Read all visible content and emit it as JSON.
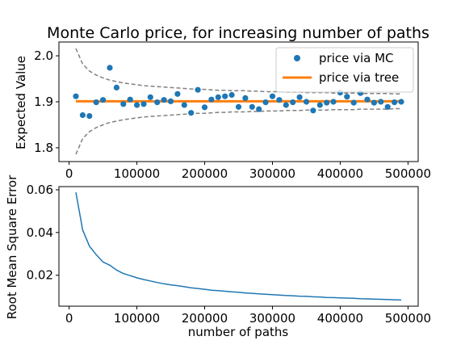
{
  "chart_data": [
    {
      "type": "scatter",
      "title": "Monte Carlo price, for increasing number of paths",
      "xlabel": "",
      "ylabel": "Expected Value",
      "xlim": [
        -15000,
        515000
      ],
      "ylim": [
        1.77,
        2.03
      ],
      "xticks": [
        0,
        100000,
        200000,
        300000,
        400000,
        500000
      ],
      "xtick_labels": [
        "0",
        "100000",
        "200000",
        "300000",
        "400000",
        "500000"
      ],
      "yticks": [
        1.8,
        1.9,
        2.0
      ],
      "ytick_labels": [
        "1.8",
        "1.9",
        "2.0"
      ],
      "grid": false,
      "legend_position": "upper right",
      "legend": [
        "price via MC",
        "price via tree"
      ],
      "x": [
        10000,
        20000,
        30000,
        40000,
        50000,
        60000,
        70000,
        80000,
        90000,
        100000,
        110000,
        120000,
        130000,
        140000,
        150000,
        160000,
        170000,
        180000,
        190000,
        200000,
        210000,
        220000,
        230000,
        240000,
        250000,
        260000,
        270000,
        280000,
        290000,
        300000,
        310000,
        320000,
        330000,
        340000,
        350000,
        360000,
        370000,
        380000,
        390000,
        400000,
        410000,
        420000,
        430000,
        440000,
        450000,
        460000,
        470000,
        480000,
        490000
      ],
      "series": [
        {
          "name": "price via MC",
          "style": "markers",
          "color": "#1f77b4",
          "values": [
            1.912,
            1.871,
            1.869,
            1.899,
            1.904,
            1.974,
            1.931,
            1.895,
            1.905,
            1.893,
            1.895,
            1.91,
            1.899,
            1.904,
            1.901,
            1.917,
            1.893,
            1.876,
            1.926,
            1.888,
            1.905,
            1.91,
            1.912,
            1.915,
            1.889,
            1.908,
            1.889,
            1.884,
            1.899,
            1.912,
            1.904,
            1.893,
            1.899,
            1.91,
            1.9,
            1.881,
            1.893,
            1.898,
            1.9,
            1.92,
            1.911,
            1.898,
            1.919,
            1.905,
            1.898,
            1.9,
            1.889,
            1.899,
            1.9
          ]
        },
        {
          "name": "price via tree",
          "style": "line",
          "color": "#ff7f0e",
          "values": [
            1.901,
            1.901,
            1.901,
            1.901,
            1.901,
            1.901,
            1.901,
            1.901,
            1.901,
            1.901,
            1.901,
            1.901,
            1.901,
            1.901,
            1.901,
            1.901,
            1.901,
            1.901,
            1.901,
            1.901,
            1.901,
            1.901,
            1.901,
            1.901,
            1.901,
            1.901,
            1.901,
            1.901,
            1.901,
            1.901,
            1.901,
            1.901,
            1.901,
            1.901,
            1.901,
            1.901,
            1.901,
            1.901,
            1.901,
            1.901,
            1.901,
            1.901,
            1.901,
            1.901,
            1.901,
            1.901,
            1.901,
            1.901,
            1.901
          ]
        },
        {
          "style": "dashed",
          "color": "#808080",
          "values": [
            2.016,
            1.982,
            1.967,
            1.958,
            1.952,
            1.947,
            1.944,
            1.941,
            1.939,
            1.937,
            1.935,
            1.934,
            1.933,
            1.932,
            1.931,
            1.93,
            1.929,
            1.928,
            1.927,
            1.927,
            1.926,
            1.925,
            1.925,
            1.924,
            1.924,
            1.924,
            1.923,
            1.923,
            1.922,
            1.922,
            1.922,
            1.921,
            1.921,
            1.921,
            1.92,
            1.92,
            1.92,
            1.92,
            1.919,
            1.919,
            1.919,
            1.919,
            1.918,
            1.918,
            1.918,
            1.918,
            1.918,
            1.917,
            1.917
          ]
        },
        {
          "style": "dashed",
          "color": "#808080",
          "values": [
            1.786,
            1.82,
            1.835,
            1.844,
            1.85,
            1.855,
            1.858,
            1.861,
            1.863,
            1.865,
            1.867,
            1.868,
            1.869,
            1.87,
            1.871,
            1.872,
            1.873,
            1.874,
            1.875,
            1.875,
            1.876,
            1.877,
            1.877,
            1.878,
            1.878,
            1.878,
            1.879,
            1.879,
            1.88,
            1.88,
            1.88,
            1.881,
            1.881,
            1.881,
            1.882,
            1.882,
            1.882,
            1.882,
            1.883,
            1.883,
            1.883,
            1.883,
            1.884,
            1.884,
            1.884,
            1.884,
            1.884,
            1.885,
            1.885
          ]
        }
      ]
    },
    {
      "type": "line",
      "title": "",
      "xlabel": "number of paths",
      "ylabel": "Root Mean Square Error",
      "xlim": [
        -15000,
        515000
      ],
      "ylim": [
        0.0055,
        0.0615
      ],
      "xticks": [
        0,
        100000,
        200000,
        300000,
        400000,
        500000
      ],
      "xtick_labels": [
        "0",
        "100000",
        "200000",
        "300000",
        "400000",
        "500000"
      ],
      "yticks": [
        0.02,
        0.04,
        0.06
      ],
      "ytick_labels": [
        "0.02",
        "0.04",
        "0.06"
      ],
      "grid": false,
      "x": [
        10000,
        20000,
        30000,
        40000,
        50000,
        60000,
        70000,
        80000,
        90000,
        100000,
        110000,
        120000,
        130000,
        140000,
        150000,
        160000,
        170000,
        180000,
        190000,
        200000,
        210000,
        220000,
        230000,
        240000,
        250000,
        260000,
        270000,
        280000,
        290000,
        300000,
        310000,
        320000,
        330000,
        340000,
        350000,
        360000,
        370000,
        380000,
        390000,
        400000,
        410000,
        420000,
        430000,
        440000,
        450000,
        460000,
        470000,
        480000,
        490000
      ],
      "series": [
        {
          "color": "#1f77b4",
          "values": [
            0.0588,
            0.0412,
            0.0336,
            0.0296,
            0.0262,
            0.0247,
            0.0224,
            0.0208,
            0.0198,
            0.0188,
            0.018,
            0.0173,
            0.0166,
            0.016,
            0.0155,
            0.0151,
            0.0146,
            0.0141,
            0.0138,
            0.0134,
            0.013,
            0.0128,
            0.0125,
            0.0122,
            0.012,
            0.0117,
            0.0115,
            0.0113,
            0.0111,
            0.0109,
            0.0107,
            0.0105,
            0.0104,
            0.0102,
            0.0101,
            0.0099,
            0.0098,
            0.0096,
            0.0095,
            0.0094,
            0.0093,
            0.0092,
            0.009,
            0.0089,
            0.0088,
            0.0087,
            0.0086,
            0.0085,
            0.0084
          ]
        }
      ]
    }
  ]
}
